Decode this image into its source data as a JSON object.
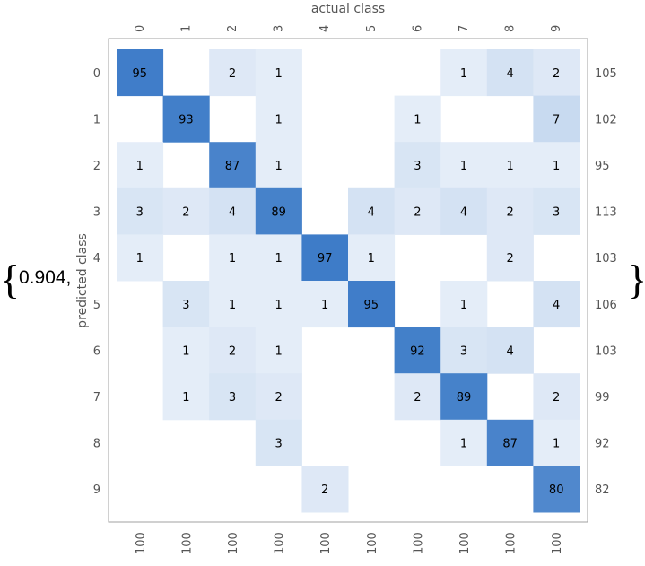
{
  "expression": {
    "open_brace": "{",
    "prefix": "0.904,",
    "close_brace": "}"
  },
  "chart_data": {
    "type": "heatmap",
    "title": "",
    "xlabel": "actual class",
    "ylabel": "predicted class",
    "x_categories": [
      "0",
      "1",
      "2",
      "3",
      "4",
      "5",
      "6",
      "7",
      "8",
      "9"
    ],
    "y_categories": [
      "0",
      "1",
      "2",
      "3",
      "4",
      "5",
      "6",
      "7",
      "8",
      "9"
    ],
    "matrix": [
      [
        95,
        0,
        2,
        1,
        0,
        0,
        0,
        1,
        4,
        2
      ],
      [
        0,
        93,
        0,
        1,
        0,
        0,
        1,
        0,
        0,
        7
      ],
      [
        1,
        0,
        87,
        1,
        0,
        0,
        3,
        1,
        1,
        1
      ],
      [
        3,
        2,
        4,
        89,
        0,
        4,
        2,
        4,
        2,
        3
      ],
      [
        1,
        0,
        1,
        1,
        97,
        1,
        0,
        0,
        2,
        0
      ],
      [
        0,
        3,
        1,
        1,
        1,
        95,
        0,
        1,
        0,
        4
      ],
      [
        0,
        1,
        2,
        1,
        0,
        0,
        92,
        3,
        4,
        0
      ],
      [
        0,
        1,
        3,
        2,
        0,
        0,
        2,
        89,
        0,
        2
      ],
      [
        0,
        0,
        0,
        3,
        0,
        0,
        0,
        1,
        87,
        1
      ],
      [
        0,
        0,
        0,
        0,
        2,
        0,
        0,
        0,
        0,
        80
      ]
    ],
    "row_totals": [
      "105",
      "102",
      "95",
      "113",
      "103",
      "106",
      "103",
      "99",
      "92",
      "82"
    ],
    "column_totals": [
      "100",
      "100",
      "100",
      "100",
      "100",
      "100",
      "100",
      "100",
      "100",
      "100"
    ],
    "colors": {
      "high": "#3e7cc8",
      "low": "#f3f7fc",
      "frame": "#a0a0a0",
      "label": "#555555"
    }
  }
}
